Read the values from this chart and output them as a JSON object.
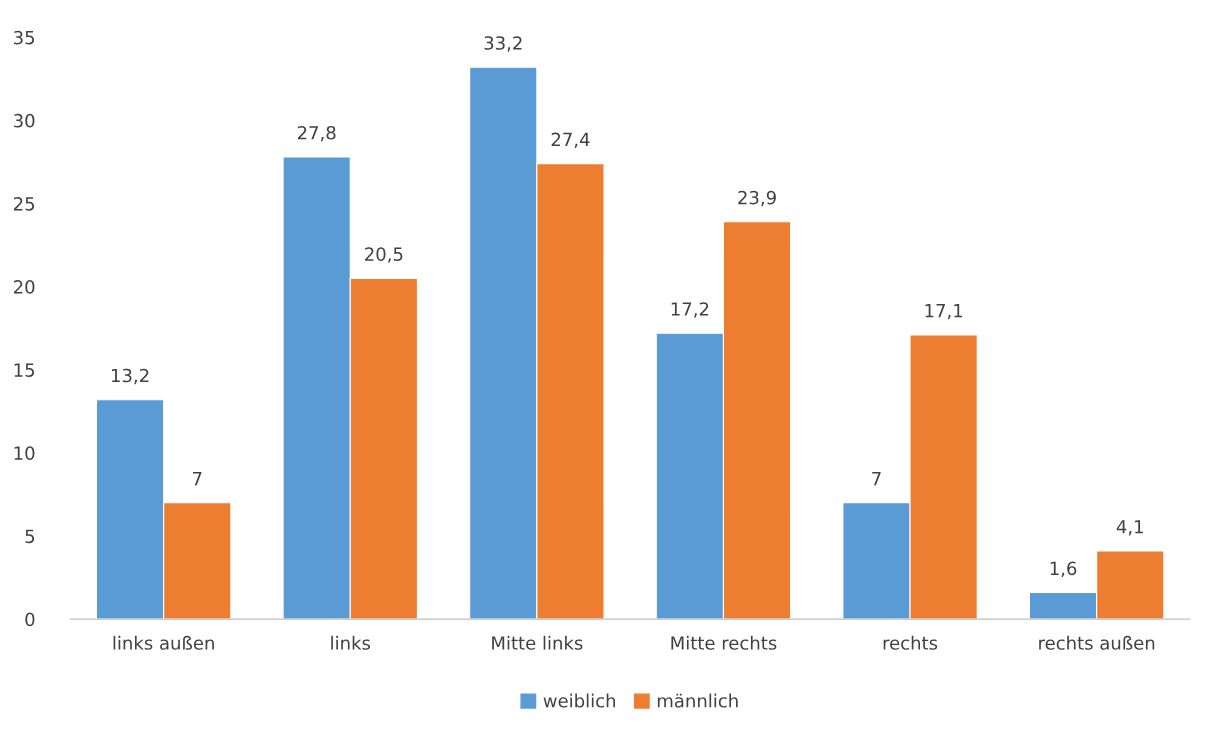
{
  "chart_data": {
    "type": "bar",
    "categories": [
      "links außen",
      "links",
      "Mitte links",
      "Mitte rechts",
      "rechts",
      "rechts außen"
    ],
    "series": [
      {
        "name": "weiblich",
        "color": "#5b9bd5",
        "values": [
          13.2,
          27.8,
          33.2,
          17.2,
          7,
          1.6
        ],
        "value_labels": [
          "13,2",
          "27,8",
          "33,2",
          "17,2",
          "7",
          "1,6"
        ]
      },
      {
        "name": "männlich",
        "color": "#ed7d31",
        "values": [
          7,
          20.5,
          27.4,
          23.9,
          17.1,
          4.1
        ],
        "value_labels": [
          "7",
          "20,5",
          "27,4",
          "23,9",
          "17,1",
          "4,1"
        ]
      }
    ],
    "ylim": [
      0,
      35
    ],
    "yticks": [
      0,
      5,
      10,
      15,
      20,
      25,
      30,
      35
    ],
    "grid": false,
    "legend": "bottom"
  }
}
